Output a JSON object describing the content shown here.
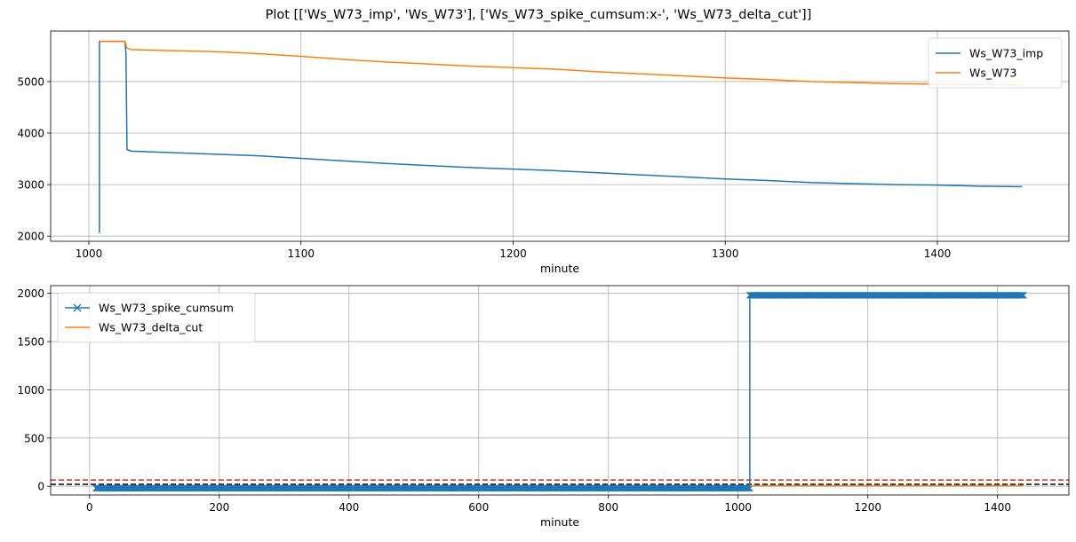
{
  "figure": {
    "title": "Plot [['Ws_W73_imp', 'Ws_W73'], ['Ws_W73_spike_cumsum:x-', 'Ws_W73_delta_cut']]"
  },
  "chart_data": [
    {
      "type": "line",
      "xlabel": "minute",
      "ylabel": "",
      "xlim": [
        982,
        1462
      ],
      "ylim": [
        1900,
        5980
      ],
      "xticks": [
        1000,
        1100,
        1200,
        1300,
        1400
      ],
      "yticks": [
        2000,
        3000,
        4000,
        5000
      ],
      "grid": true,
      "legend_position": "top-right",
      "series": [
        {
          "name": "Ws_W73_imp",
          "color": "#1f77b4",
          "x": [
            1005,
            1005,
            1005.5,
            1006,
            1017,
            1017.5,
            1018,
            1020,
            1040,
            1060,
            1080,
            1100,
            1120,
            1140,
            1160,
            1180,
            1200,
            1220,
            1240,
            1260,
            1280,
            1300,
            1320,
            1340,
            1360,
            1380,
            1400,
            1420,
            1440
          ],
          "y": [
            2060,
            5780,
            5780,
            5780,
            5780,
            5550,
            3680,
            3650,
            3620,
            3590,
            3560,
            3510,
            3460,
            3410,
            3370,
            3330,
            3300,
            3270,
            3230,
            3190,
            3150,
            3110,
            3080,
            3040,
            3020,
            3000,
            2990,
            2970,
            2960
          ]
        },
        {
          "name": "Ws_W73",
          "color": "#ff7f0e",
          "x": [
            1005,
            1017,
            1018,
            1020,
            1040,
            1060,
            1080,
            1100,
            1120,
            1140,
            1160,
            1180,
            1200,
            1220,
            1240,
            1260,
            1280,
            1300,
            1320,
            1340,
            1360,
            1380,
            1400,
            1420,
            1440
          ],
          "y": [
            5780,
            5780,
            5650,
            5620,
            5600,
            5580,
            5540,
            5490,
            5430,
            5380,
            5340,
            5300,
            5270,
            5240,
            5190,
            5150,
            5110,
            5070,
            5040,
            5000,
            4980,
            4960,
            4950,
            4940,
            4930
          ]
        }
      ]
    },
    {
      "type": "line",
      "xlabel": "minute",
      "ylabel": "",
      "xlim": [
        -60,
        1510
      ],
      "ylim": [
        -90,
        2080
      ],
      "xticks": [
        0,
        200,
        400,
        600,
        800,
        1000,
        1200,
        1400
      ],
      "yticks": [
        0,
        500,
        1000,
        1500,
        2000
      ],
      "grid": true,
      "legend_position": "top-left",
      "hlines": [
        {
          "y": 65,
          "color": "#d62728",
          "style": "dashed"
        },
        {
          "y": 20,
          "color": "#000000",
          "style": "dashed"
        }
      ],
      "series": [
        {
          "name": "Ws_W73_spike_cumsum",
          "color": "#1f77b4",
          "marker": "x",
          "segments": [
            {
              "x_start": 10,
              "x_end": 1018,
              "y": -20
            },
            {
              "x_start": 1018,
              "x_end": 1440,
              "y": 1980
            }
          ]
        },
        {
          "name": "Ws_W73_delta_cut",
          "color": "#ff7f0e",
          "x": [
            1018,
            1440
          ],
          "y": [
            5,
            5
          ]
        }
      ]
    }
  ]
}
